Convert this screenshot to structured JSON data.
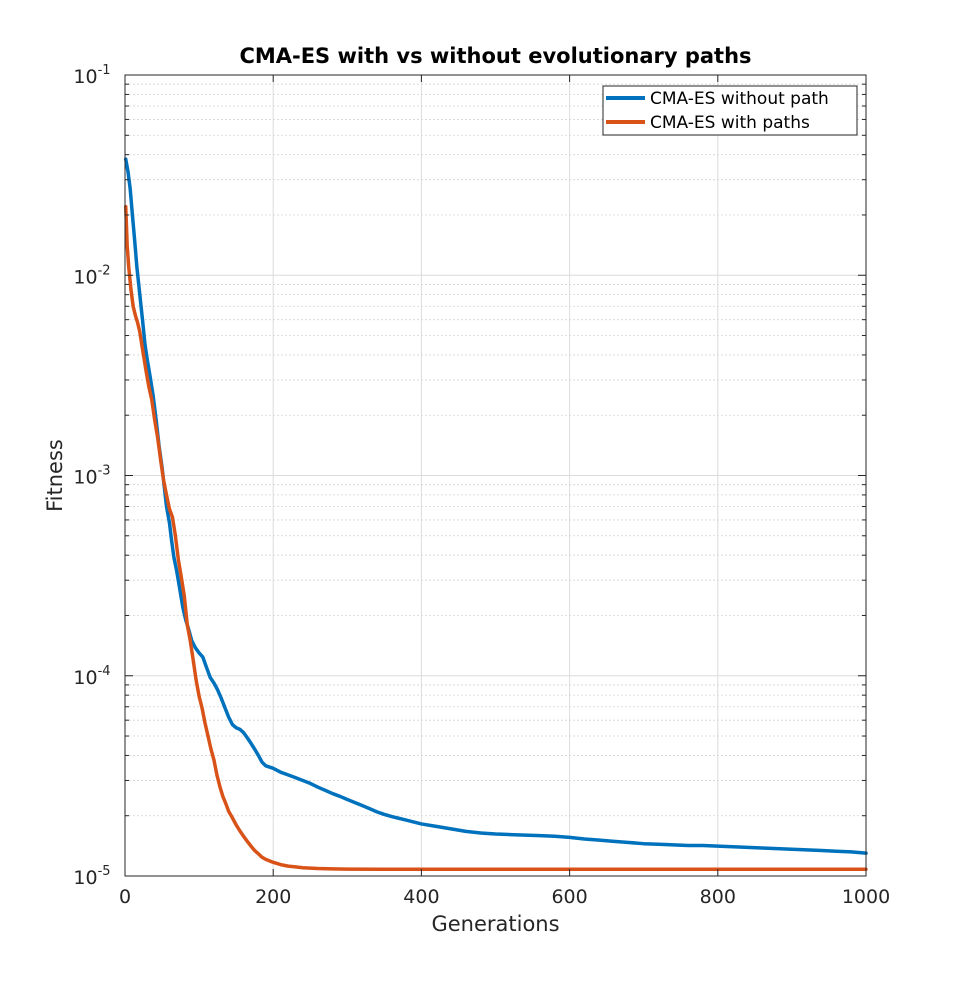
{
  "chart_data": {
    "type": "line",
    "title": "CMA-ES with vs without evolutionary paths",
    "xlabel": "Generations",
    "ylabel": "Fitness",
    "xlim": [
      0,
      1000
    ],
    "ylim": [
      1e-05,
      0.1
    ],
    "yscale": "log",
    "grid": true,
    "minor_grid": true,
    "legend_position": "top-right",
    "x_ticks": [
      {
        "value": 0,
        "label": "0"
      },
      {
        "value": 200,
        "label": "200"
      },
      {
        "value": 400,
        "label": "400"
      },
      {
        "value": 600,
        "label": "600"
      },
      {
        "value": 800,
        "label": "800"
      },
      {
        "value": 1000,
        "label": "1000"
      }
    ],
    "y_ticks": [
      {
        "value": 1e-05,
        "base": "10",
        "exp": "-5"
      },
      {
        "value": 0.0001,
        "base": "10",
        "exp": "-4"
      },
      {
        "value": 0.001,
        "base": "10",
        "exp": "-3"
      },
      {
        "value": 0.01,
        "base": "10",
        "exp": "-2"
      },
      {
        "value": 0.1,
        "base": "10",
        "exp": "-1"
      }
    ],
    "series": [
      {
        "name": "CMA-ES without path",
        "color": "#0072BD",
        "points": [
          [
            1,
            0.038
          ],
          [
            4,
            0.033
          ],
          [
            7,
            0.027
          ],
          [
            10,
            0.02
          ],
          [
            13,
            0.015
          ],
          [
            16,
            0.011
          ],
          [
            20,
            0.008
          ],
          [
            24,
            0.0058
          ],
          [
            27,
            0.0045
          ],
          [
            30,
            0.0038
          ],
          [
            34,
            0.0031
          ],
          [
            38,
            0.0025
          ],
          [
            42,
            0.0019
          ],
          [
            46,
            0.0014
          ],
          [
            50,
            0.0011
          ],
          [
            53,
            0.00088
          ],
          [
            56,
            0.0007
          ],
          [
            60,
            0.00058
          ],
          [
            63,
            0.00047
          ],
          [
            66,
            0.00039
          ],
          [
            70,
            0.00033
          ],
          [
            74,
            0.00027
          ],
          [
            78,
            0.00022
          ],
          [
            82,
            0.00019
          ],
          [
            86,
            0.00017
          ],
          [
            90,
            0.00015
          ],
          [
            95,
            0.000138
          ],
          [
            100,
            0.00013
          ],
          [
            105,
            0.000124
          ],
          [
            110,
            0.00011
          ],
          [
            115,
            9.8e-05
          ],
          [
            120,
            9.2e-05
          ],
          [
            125,
            8.5e-05
          ],
          [
            130,
            7.7e-05
          ],
          [
            135,
            6.9e-05
          ],
          [
            140,
            6.2e-05
          ],
          [
            145,
            5.7e-05
          ],
          [
            150,
            5.5e-05
          ],
          [
            155,
            5.4e-05
          ],
          [
            160,
            5.2e-05
          ],
          [
            165,
            4.9e-05
          ],
          [
            170,
            4.6e-05
          ],
          [
            175,
            4.3e-05
          ],
          [
            180,
            4e-05
          ],
          [
            185,
            3.7e-05
          ],
          [
            190,
            3.55e-05
          ],
          [
            195,
            3.5e-05
          ],
          [
            200,
            3.45e-05
          ],
          [
            210,
            3.3e-05
          ],
          [
            220,
            3.2e-05
          ],
          [
            230,
            3.1e-05
          ],
          [
            240,
            3e-05
          ],
          [
            250,
            2.9e-05
          ],
          [
            260,
            2.78e-05
          ],
          [
            270,
            2.68e-05
          ],
          [
            280,
            2.58e-05
          ],
          [
            290,
            2.5e-05
          ],
          [
            300,
            2.41e-05
          ],
          [
            310,
            2.33e-05
          ],
          [
            320,
            2.25e-05
          ],
          [
            330,
            2.17e-05
          ],
          [
            340,
            2.09e-05
          ],
          [
            350,
            2.03e-05
          ],
          [
            360,
            1.98e-05
          ],
          [
            370,
            1.94e-05
          ],
          [
            380,
            1.9e-05
          ],
          [
            390,
            1.86e-05
          ],
          [
            400,
            1.82e-05
          ],
          [
            420,
            1.77e-05
          ],
          [
            440,
            1.72e-05
          ],
          [
            460,
            1.67e-05
          ],
          [
            480,
            1.64e-05
          ],
          [
            500,
            1.62e-05
          ],
          [
            520,
            1.61e-05
          ],
          [
            540,
            1.6e-05
          ],
          [
            560,
            1.59e-05
          ],
          [
            580,
            1.58e-05
          ],
          [
            600,
            1.56e-05
          ],
          [
            620,
            1.53e-05
          ],
          [
            640,
            1.51e-05
          ],
          [
            660,
            1.49e-05
          ],
          [
            680,
            1.47e-05
          ],
          [
            700,
            1.45e-05
          ],
          [
            720,
            1.44e-05
          ],
          [
            740,
            1.43e-05
          ],
          [
            760,
            1.42e-05
          ],
          [
            780,
            1.42e-05
          ],
          [
            800,
            1.41e-05
          ],
          [
            820,
            1.4e-05
          ],
          [
            840,
            1.39e-05
          ],
          [
            860,
            1.38e-05
          ],
          [
            880,
            1.37e-05
          ],
          [
            900,
            1.36e-05
          ],
          [
            920,
            1.35e-05
          ],
          [
            940,
            1.34e-05
          ],
          [
            960,
            1.33e-05
          ],
          [
            980,
            1.32e-05
          ],
          [
            1000,
            1.3e-05
          ]
        ]
      },
      {
        "name": "CMA-ES with paths",
        "color": "#D95319",
        "points": [
          [
            1,
            0.022
          ],
          [
            3,
            0.014
          ],
          [
            5,
            0.011
          ],
          [
            8,
            0.0085
          ],
          [
            11,
            0.007
          ],
          [
            14,
            0.0063
          ],
          [
            17,
            0.0058
          ],
          [
            20,
            0.0052
          ],
          [
            24,
            0.0042
          ],
          [
            28,
            0.0034
          ],
          [
            32,
            0.0028
          ],
          [
            36,
            0.0024
          ],
          [
            40,
            0.0019
          ],
          [
            44,
            0.00155
          ],
          [
            48,
            0.0012
          ],
          [
            52,
            0.00095
          ],
          [
            56,
            0.0008
          ],
          [
            60,
            0.00068
          ],
          [
            64,
            0.00062
          ],
          [
            68,
            0.0005
          ],
          [
            72,
            0.00038
          ],
          [
            76,
            0.00031
          ],
          [
            80,
            0.00025
          ],
          [
            84,
            0.00018
          ],
          [
            88,
            0.00015
          ],
          [
            92,
            0.00012
          ],
          [
            96,
            9.5e-05
          ],
          [
            100,
            7.9e-05
          ],
          [
            104,
            6.9e-05
          ],
          [
            108,
            5.8e-05
          ],
          [
            112,
            5e-05
          ],
          [
            116,
            4.3e-05
          ],
          [
            120,
            3.8e-05
          ],
          [
            124,
            3.2e-05
          ],
          [
            128,
            2.8e-05
          ],
          [
            132,
            2.5e-05
          ],
          [
            136,
            2.3e-05
          ],
          [
            140,
            2.1e-05
          ],
          [
            145,
            1.95e-05
          ],
          [
            150,
            1.8e-05
          ],
          [
            155,
            1.68e-05
          ],
          [
            160,
            1.58e-05
          ],
          [
            165,
            1.49e-05
          ],
          [
            170,
            1.41e-05
          ],
          [
            175,
            1.34e-05
          ],
          [
            180,
            1.29e-05
          ],
          [
            185,
            1.24e-05
          ],
          [
            190,
            1.21e-05
          ],
          [
            200,
            1.17e-05
          ],
          [
            210,
            1.14e-05
          ],
          [
            220,
            1.12e-05
          ],
          [
            230,
            1.11e-05
          ],
          [
            240,
            1.1e-05
          ],
          [
            260,
            1.09e-05
          ],
          [
            280,
            1.085e-05
          ],
          [
            300,
            1.082e-05
          ],
          [
            350,
            1.08e-05
          ],
          [
            400,
            1.08e-05
          ],
          [
            500,
            1.08e-05
          ],
          [
            600,
            1.08e-05
          ],
          [
            700,
            1.08e-05
          ],
          [
            800,
            1.08e-05
          ],
          [
            900,
            1.08e-05
          ],
          [
            1000,
            1.08e-05
          ]
        ]
      }
    ]
  }
}
